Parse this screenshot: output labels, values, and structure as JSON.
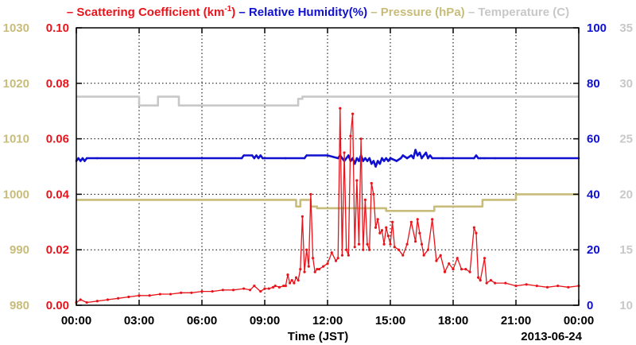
{
  "chart_data": {
    "type": "line",
    "legend": [
      {
        "prefix": "– ",
        "label": "Scattering Coefficient (km",
        "sup": "-1",
        "suffix": ")",
        "color": "#e8141b"
      },
      {
        "prefix": "– ",
        "label": "Relative Humidity(%)",
        "sup": "",
        "suffix": "",
        "color": "#1010d0"
      },
      {
        "prefix": "– ",
        "label": "Pressure (hPa)",
        "sup": "",
        "suffix": "",
        "color": "#c8bc7a"
      },
      {
        "prefix": "– ",
        "label": "Temperature (",
        "sup": "",
        "suffix": "C)",
        "color": "#c8c8c8"
      }
    ],
    "xlabel": "Time (JST)",
    "date_label": "2013-06-24",
    "x_ticks": [
      "00:00",
      "03:00",
      "06:00",
      "09:00",
      "12:00",
      "15:00",
      "18:00",
      "21:00",
      "00:00"
    ],
    "xlim_hours": [
      0,
      24
    ],
    "grid": true,
    "axes": {
      "pressure": {
        "side": "left-outer",
        "ticks": [
          "980",
          "990",
          "1000",
          "1010",
          "1020",
          "1030"
        ],
        "ylim": [
          980,
          1030
        ],
        "color": "#c8bc7a"
      },
      "scattering": {
        "side": "left-inner",
        "ticks": [
          "0.00",
          "0.02",
          "0.04",
          "0.06",
          "0.08",
          "0.10"
        ],
        "ylim": [
          0,
          0.1
        ],
        "color": "#e8141b"
      },
      "humidity": {
        "side": "right-inner",
        "ticks": [
          "0",
          "20",
          "40",
          "60",
          "80",
          "100"
        ],
        "ylim": [
          0,
          100
        ],
        "color": "#1010d0"
      },
      "temperature": {
        "side": "right-outer",
        "ticks": [
          "10",
          "15",
          "20",
          "25",
          "30",
          "35"
        ],
        "ylim": [
          10,
          35
        ],
        "color": "#c8c8c8"
      }
    },
    "series": [
      {
        "name": "Temperature",
        "axis": "temperature",
        "color": "#c8c8c8",
        "step": true,
        "x": [
          0,
          3.0,
          3.0,
          3.9,
          3.9,
          4.9,
          4.9,
          10.6,
          10.6,
          10.8,
          10.8,
          24
        ],
        "y": [
          28.8,
          28.8,
          28.0,
          28.0,
          28.8,
          28.8,
          28.0,
          28.0,
          28.6,
          28.6,
          28.8,
          28.8
        ]
      },
      {
        "name": "Pressure",
        "axis": "pressure",
        "color": "#c8bc7a",
        "step": true,
        "x": [
          0,
          10.5,
          10.5,
          10.7,
          10.7,
          11.2,
          11.2,
          11.5,
          11.5,
          14.8,
          14.8,
          17.1,
          17.1,
          19.4,
          19.4,
          21.0,
          21.0,
          24
        ],
        "y": [
          999,
          999,
          997.8,
          997.8,
          999,
          999,
          997.8,
          997.8,
          997.5,
          997.5,
          997.0,
          997.0,
          997.8,
          997.8,
          999,
          999,
          1000,
          1000
        ]
      },
      {
        "name": "Relative Humidity",
        "axis": "humidity",
        "color": "#1010d0",
        "step": false,
        "x": [
          0,
          0.1,
          0.2,
          0.3,
          0.4,
          0.5,
          1.0,
          3.0,
          6.0,
          7.9,
          8.0,
          8.4,
          8.5,
          8.6,
          8.7,
          8.8,
          8.9,
          9.0,
          10.0,
          10.9,
          11.0,
          12.0,
          12.5,
          12.6,
          12.7,
          12.8,
          12.9,
          13.0,
          13.1,
          13.2,
          13.3,
          13.4,
          13.5,
          13.6,
          13.7,
          13.8,
          13.9,
          14.0,
          14.1,
          14.2,
          14.3,
          14.4,
          14.5,
          14.6,
          14.7,
          14.8,
          14.9,
          15.0,
          15.3,
          15.5,
          15.6,
          15.8,
          16.0,
          16.1,
          16.2,
          16.3,
          16.4,
          16.5,
          16.6,
          16.7,
          16.8,
          16.9,
          17.0,
          17.5,
          18.0,
          19.0,
          19.1,
          19.2,
          19.3,
          19.5,
          20.0,
          21.0,
          24.0
        ],
        "y": [
          52,
          53,
          52,
          53,
          52,
          53,
          53,
          53,
          53,
          53,
          54,
          54,
          53,
          54,
          53,
          54,
          53,
          53,
          53,
          53,
          54,
          54,
          53,
          54,
          53,
          52,
          53,
          54,
          52,
          53,
          51,
          53,
          52,
          54,
          52,
          53,
          52,
          53,
          51,
          52,
          50,
          52,
          51,
          53,
          52,
          53,
          52,
          53,
          52,
          53,
          54,
          53,
          54,
          53,
          56,
          54,
          55,
          53,
          54,
          55,
          53,
          54,
          53,
          53,
          53,
          53,
          54,
          53,
          53,
          53,
          53,
          53,
          53
        ]
      },
      {
        "name": "Scattering Coefficient",
        "axis": "scattering",
        "color": "#e8141b",
        "step": false,
        "markers": true,
        "x": [
          0,
          0.2,
          0.5,
          1.0,
          1.5,
          2.0,
          2.5,
          3.0,
          3.5,
          4.0,
          4.5,
          5.0,
          5.5,
          6.0,
          6.5,
          7.0,
          7.5,
          8.0,
          8.3,
          8.5,
          8.8,
          9.0,
          9.2,
          9.4,
          9.5,
          9.7,
          9.9,
          10.0,
          10.1,
          10.2,
          10.3,
          10.4,
          10.5,
          10.6,
          10.7,
          10.8,
          10.9,
          11.0,
          11.1,
          11.2,
          11.3,
          11.4,
          11.5,
          11.6,
          11.8,
          12.0,
          12.2,
          12.4,
          12.5,
          12.6,
          12.7,
          12.8,
          12.9,
          13.0,
          13.1,
          13.2,
          13.3,
          13.4,
          13.5,
          13.6,
          13.7,
          13.8,
          13.9,
          14.0,
          14.1,
          14.2,
          14.3,
          14.4,
          14.5,
          14.6,
          14.7,
          14.8,
          14.9,
          15.0,
          15.1,
          15.2,
          15.4,
          15.6,
          15.8,
          16.0,
          16.2,
          16.3,
          16.4,
          16.5,
          16.6,
          16.8,
          17.0,
          17.2,
          17.4,
          17.6,
          17.8,
          18.0,
          18.2,
          18.4,
          18.6,
          18.8,
          19.0,
          19.1,
          19.2,
          19.3,
          19.5,
          19.6,
          19.8,
          20.0,
          20.5,
          21.0,
          21.5,
          22.0,
          22.5,
          23.0,
          23.5,
          24.0
        ],
        "y": [
          0.001,
          0.002,
          0.001,
          0.0015,
          0.002,
          0.0025,
          0.003,
          0.0035,
          0.0035,
          0.004,
          0.004,
          0.0045,
          0.0045,
          0.005,
          0.005,
          0.0055,
          0.0055,
          0.006,
          0.0055,
          0.007,
          0.005,
          0.006,
          0.006,
          0.0065,
          0.007,
          0.0065,
          0.007,
          0.007,
          0.011,
          0.008,
          0.009,
          0.008,
          0.01,
          0.009,
          0.013,
          0.032,
          0.012,
          0.02,
          0.014,
          0.04,
          0.017,
          0.012,
          0.013,
          0.013,
          0.014,
          0.015,
          0.019,
          0.016,
          0.017,
          0.071,
          0.018,
          0.055,
          0.02,
          0.018,
          0.061,
          0.069,
          0.021,
          0.045,
          0.022,
          0.06,
          0.02,
          0.038,
          0.022,
          0.02,
          0.044,
          0.04,
          0.028,
          0.031,
          0.026,
          0.027,
          0.022,
          0.028,
          0.025,
          0.022,
          0.03,
          0.021,
          0.02,
          0.018,
          0.022,
          0.03,
          0.023,
          0.031,
          0.026,
          0.022,
          0.018,
          0.02,
          0.031,
          0.016,
          0.018,
          0.012,
          0.015,
          0.013,
          0.017,
          0.013,
          0.013,
          0.012,
          0.028,
          0.026,
          0.01,
          0.009,
          0.017,
          0.008,
          0.009,
          0.008,
          0.008,
          0.007,
          0.0075,
          0.007,
          0.0065,
          0.007,
          0.0065,
          0.007
        ]
      }
    ]
  }
}
